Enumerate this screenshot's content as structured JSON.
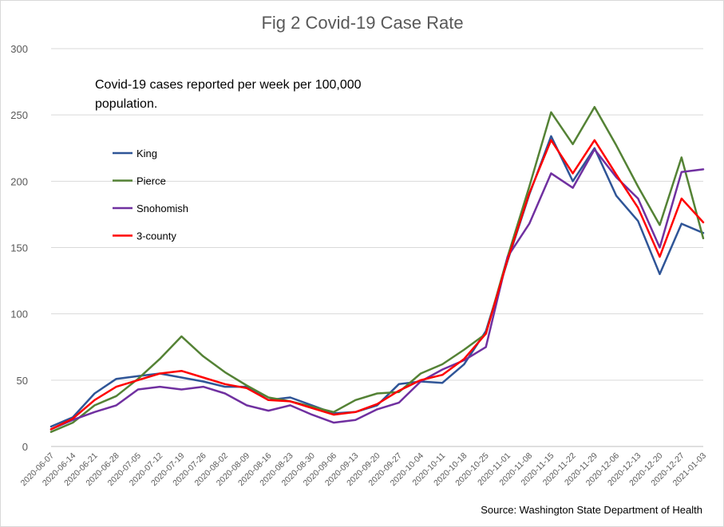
{
  "chart_data": {
    "type": "line",
    "title": "Fig 2 Covid-19 Case Rate",
    "annotation_lines": [
      "Covid-19 cases reported per week per 100,000",
      "population."
    ],
    "source": "Source: Washington State Department of Health",
    "xlabel": "",
    "ylabel": "",
    "ylim": [
      0,
      300
    ],
    "yticks": [
      0,
      50,
      100,
      150,
      200,
      250,
      300
    ],
    "grid": true,
    "legend_position": "upper-left",
    "categories": [
      "2020-06-07",
      "2020-06-14",
      "2020-06-21",
      "2020-06-28",
      "2020-07-05",
      "2020-07-12",
      "2020-07-19",
      "2020-07-26",
      "2020-08-02",
      "2020-08-09",
      "2020-08-16",
      "2020-08-23",
      "2020-08-30",
      "2020-09-06",
      "2020-09-13",
      "2020-09-20",
      "2020-09-27",
      "2020-10-04",
      "2020-10-11",
      "2020-10-18",
      "2020-10-25",
      "2020-11-01",
      "2020-11-08",
      "2020-11-15",
      "2020-11-22",
      "2020-11-29",
      "2020-12-06",
      "2020-12-13",
      "2020-12-20",
      "2020-12-27",
      "2021-01-03"
    ],
    "series": [
      {
        "name": "King",
        "color": "#2f5597",
        "values": [
          15,
          22,
          40,
          51,
          53,
          55,
          52,
          49,
          45,
          45,
          35,
          37,
          31,
          25,
          26,
          31,
          47,
          49,
          48,
          62,
          87,
          140,
          190,
          234,
          200,
          225,
          189,
          170,
          130,
          168,
          161
        ]
      },
      {
        "name": "Pierce",
        "color": "#548235",
        "values": [
          11,
          18,
          31,
          38,
          51,
          66,
          83,
          68,
          56,
          46,
          37,
          34,
          30,
          26,
          35,
          40,
          41,
          55,
          62,
          73,
          85,
          143,
          196,
          252,
          228,
          256,
          227,
          196,
          167,
          218,
          157
        ]
      },
      {
        "name": "Snohomish",
        "color": "#7030a0",
        "values": [
          13,
          20,
          26,
          31,
          43,
          45,
          43,
          45,
          40,
          31,
          27,
          31,
          24,
          18,
          20,
          28,
          33,
          49,
          58,
          65,
          75,
          143,
          168,
          206,
          195,
          224,
          203,
          187,
          150,
          207,
          209
        ]
      },
      {
        "name": "3-county",
        "color": "#ff0000",
        "values": [
          13,
          21,
          35,
          45,
          50,
          55,
          57,
          52,
          47,
          44,
          35,
          34,
          29,
          24,
          26,
          32,
          42,
          50,
          54,
          66,
          85,
          141,
          191,
          231,
          206,
          231,
          205,
          180,
          143,
          187,
          169
        ]
      }
    ]
  }
}
